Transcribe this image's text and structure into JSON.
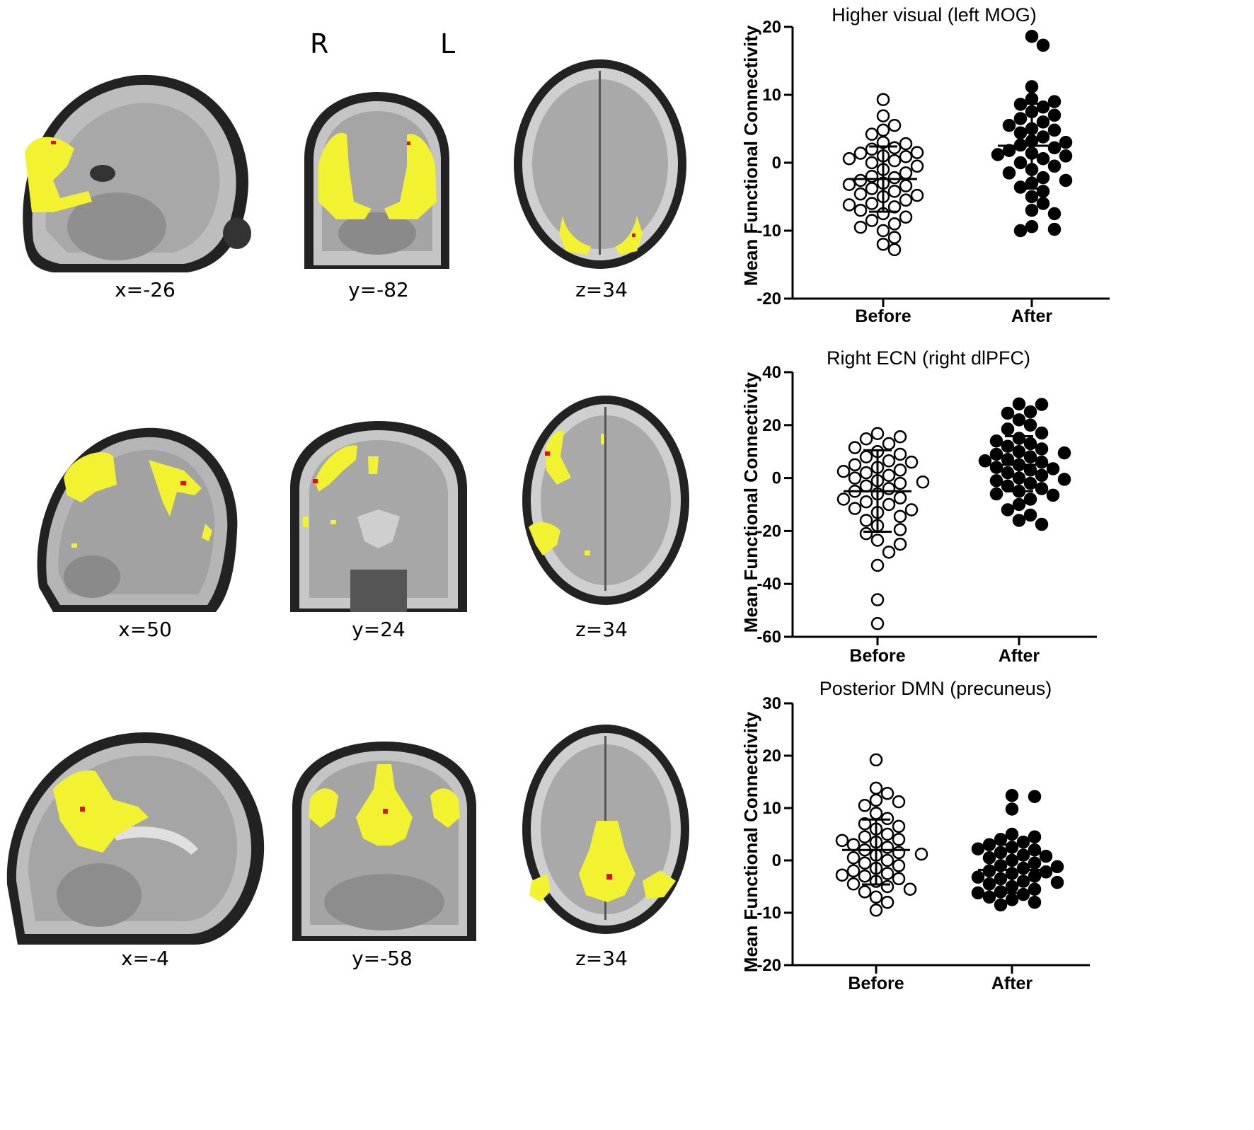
{
  "orientation": {
    "right": "R",
    "left": "L"
  },
  "rows": [
    {
      "slices": [
        {
          "coord": "x=-26",
          "view": "sagittal"
        },
        {
          "coord": "y=-82",
          "view": "coronal"
        },
        {
          "coord": "z=34",
          "view": "axial"
        }
      ]
    },
    {
      "slices": [
        {
          "coord": "x=50",
          "view": "sagittal"
        },
        {
          "coord": "y=24",
          "view": "coronal"
        },
        {
          "coord": "z=34",
          "view": "axial"
        }
      ]
    },
    {
      "slices": [
        {
          "coord": "x=-4",
          "view": "sagittal"
        },
        {
          "coord": "y=-58",
          "view": "coronal"
        },
        {
          "coord": "z=34",
          "view": "axial"
        }
      ]
    }
  ],
  "colors": {
    "activation": "#f2f230",
    "peak": "#e01010",
    "brain_gray": "#9a9a9a"
  },
  "chart_data": [
    {
      "type": "scatter",
      "title": "Higher visual (left MOG)",
      "ylabel": "Mean Functional Connectivity",
      "categories": [
        "Before",
        "After"
      ],
      "ylim": [
        -20,
        20
      ],
      "yticks": [
        -20,
        -10,
        0,
        10,
        20
      ],
      "series": [
        {
          "category": "Before",
          "marker": "open",
          "mean": -2.4,
          "sd_upper": 2.4,
          "sd_lower": -7.2,
          "values": [
            9.3,
            6.9,
            5.5,
            4.8,
            4.2,
            3.0,
            2.8,
            2.2,
            2.0,
            1.5,
            1.4,
            1.0,
            0.9,
            0.6,
            0.3,
            0.0,
            -0.5,
            -1.0,
            -1.5,
            -2.0,
            -2.2,
            -2.6,
            -3.0,
            -3.4,
            -3.8,
            -4.2,
            -4.6,
            -5.0,
            -5.5,
            -6.0,
            -6.5,
            -7.0,
            -7.5,
            -8.0,
            -8.5,
            -9.0,
            -9.5,
            -10.0,
            -11.0,
            -12.0,
            -12.8,
            -3.2,
            -4.8,
            -6.2
          ]
        },
        {
          "category": "After",
          "marker": "filled",
          "mean": 2.5,
          "sd_upper": 8.7,
          "sd_lower": -3.8,
          "values": [
            18.6,
            17.3,
            11.2,
            9.4,
            9.0,
            8.6,
            8.2,
            7.5,
            7.0,
            6.5,
            6.0,
            5.5,
            5.0,
            4.4,
            3.8,
            3.2,
            2.6,
            2.2,
            1.8,
            1.4,
            1.0,
            0.6,
            0.0,
            -0.5,
            -1.0,
            -1.5,
            -2.2,
            -3.0,
            -3.6,
            -4.2,
            -5.0,
            -6.0,
            -7.0,
            -7.5,
            -9.4,
            -9.8,
            -10.0,
            4.8,
            3.0,
            1.2,
            -2.6
          ]
        }
      ]
    },
    {
      "type": "scatter",
      "title": "Right ECN (right dlPFC)",
      "ylabel": "Mean Functional Connectivity",
      "categories": [
        "Before",
        "After"
      ],
      "ylim": [
        -60,
        40
      ],
      "yticks": [
        -60,
        -40,
        -20,
        0,
        20,
        40
      ],
      "series": [
        {
          "category": "Before",
          "marker": "open",
          "mean": -5.0,
          "sd_upper": 10.5,
          "sd_lower": -20.3,
          "values": [
            16.8,
            15.6,
            14.8,
            13.0,
            11.5,
            10.0,
            9.0,
            8.0,
            6.5,
            5.0,
            4.0,
            3.0,
            2.0,
            1.0,
            0.0,
            -1.0,
            -2.0,
            -3.0,
            -4.0,
            -5.0,
            -6.0,
            -7.5,
            -9.0,
            -10.0,
            -11.5,
            -13.0,
            -14.5,
            -16.0,
            -18.0,
            -19.5,
            -21.0,
            -23.5,
            -25.0,
            -28.0,
            -33.0,
            -46.0,
            -55.0,
            6.0,
            -8.0,
            -12.0,
            2.5,
            -1.5
          ]
        },
        {
          "category": "After",
          "marker": "filled",
          "mean": 5.0,
          "sd_upper": 15.8,
          "sd_lower": -5.0,
          "values": [
            28.0,
            27.8,
            25.0,
            24.5,
            22.0,
            20.0,
            18.5,
            17.0,
            15.0,
            13.0,
            12.0,
            11.0,
            10.0,
            9.0,
            8.0,
            7.0,
            6.0,
            5.0,
            4.0,
            3.0,
            2.0,
            1.0,
            0.0,
            -1.0,
            -2.0,
            -3.0,
            -4.0,
            -5.0,
            -6.0,
            -8.0,
            -10.0,
            -12.0,
            -14.0,
            -16.0,
            -17.5,
            14.0,
            9.5,
            6.5,
            3.5,
            -0.5,
            -6.5
          ]
        }
      ]
    },
    {
      "type": "scatter",
      "title": "Posterior DMN (precuneus)",
      "ylabel": "Mean Functional Connectivity",
      "categories": [
        "Before",
        "After"
      ],
      "ylim": [
        -20,
        30
      ],
      "yticks": [
        -20,
        -10,
        0,
        10,
        20,
        30
      ],
      "series": [
        {
          "category": "Before",
          "marker": "open",
          "mean": 2.0,
          "sd_upper": 7.8,
          "sd_lower": -4.6,
          "values": [
            19.2,
            13.8,
            12.8,
            11.5,
            11.2,
            10.5,
            9.0,
            8.0,
            7.0,
            6.0,
            5.0,
            4.5,
            4.0,
            3.5,
            3.0,
            2.5,
            2.0,
            1.5,
            1.0,
            0.5,
            0.0,
            -0.5,
            -1.0,
            -1.5,
            -2.0,
            -2.5,
            -3.0,
            -3.5,
            -4.0,
            -4.5,
            -5.0,
            -6.0,
            -7.0,
            -8.0,
            -9.5,
            6.5,
            3.8,
            -2.8,
            -5.5,
            1.2
          ]
        },
        {
          "category": "After",
          "marker": "filled",
          "mean": -1.8,
          "sd_upper": 3.0,
          "sd_lower": -6.2,
          "values": [
            12.4,
            12.2,
            9.8,
            5.0,
            4.5,
            4.0,
            3.5,
            3.0,
            2.5,
            2.0,
            1.5,
            1.0,
            0.5,
            0.0,
            -0.5,
            -1.0,
            -1.5,
            -2.0,
            -2.5,
            -3.0,
            -3.5,
            -4.0,
            -4.5,
            -5.0,
            -5.5,
            -6.0,
            -6.5,
            -7.0,
            -7.5,
            -8.0,
            -8.5,
            -2.2,
            -3.2,
            -4.2,
            -6.2,
            -1.2,
            0.8,
            2.2
          ]
        }
      ]
    }
  ]
}
